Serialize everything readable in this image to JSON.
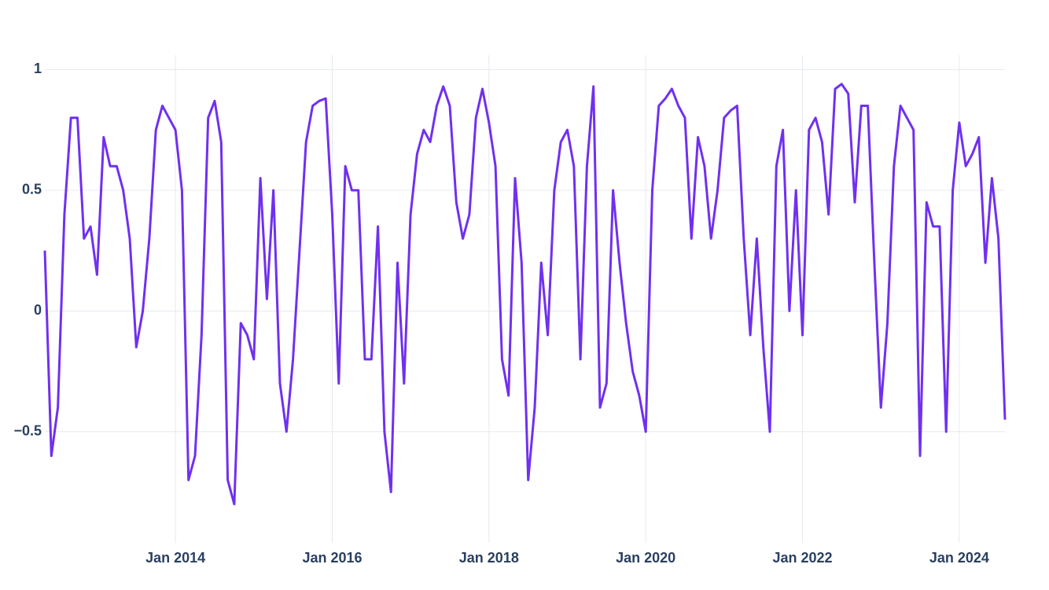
{
  "chart_data": {
    "type": "line",
    "x": [
      "2012-05",
      "2012-06",
      "2012-07",
      "2012-08",
      "2012-09",
      "2012-10",
      "2012-11",
      "2012-12",
      "2013-01",
      "2013-02",
      "2013-03",
      "2013-04",
      "2013-05",
      "2013-06",
      "2013-07",
      "2013-08",
      "2013-09",
      "2013-10",
      "2013-11",
      "2013-12",
      "2014-01",
      "2014-02",
      "2014-03",
      "2014-04",
      "2014-05",
      "2014-06",
      "2014-07",
      "2014-08",
      "2014-09",
      "2014-10",
      "2014-11",
      "2014-12",
      "2015-01",
      "2015-02",
      "2015-03",
      "2015-04",
      "2015-05",
      "2015-06",
      "2015-07",
      "2015-08",
      "2015-09",
      "2015-10",
      "2015-11",
      "2015-12",
      "2016-01",
      "2016-02",
      "2016-03",
      "2016-04",
      "2016-05",
      "2016-06",
      "2016-07",
      "2016-08",
      "2016-09",
      "2016-10",
      "2016-11",
      "2016-12",
      "2017-01",
      "2017-02",
      "2017-03",
      "2017-04",
      "2017-05",
      "2017-06",
      "2017-07",
      "2017-08",
      "2017-09",
      "2017-10",
      "2017-11",
      "2017-12",
      "2018-01",
      "2018-02",
      "2018-03",
      "2018-04",
      "2018-05",
      "2018-06",
      "2018-07",
      "2018-08",
      "2018-09",
      "2018-10",
      "2018-11",
      "2018-12",
      "2019-01",
      "2019-02",
      "2019-03",
      "2019-04",
      "2019-05",
      "2019-06",
      "2019-07",
      "2019-08",
      "2019-09",
      "2019-10",
      "2019-11",
      "2019-12",
      "2020-01",
      "2020-02",
      "2020-03",
      "2020-04",
      "2020-05",
      "2020-06",
      "2020-07",
      "2020-08",
      "2020-09",
      "2020-10",
      "2020-11",
      "2020-12",
      "2021-01",
      "2021-02",
      "2021-03",
      "2021-04",
      "2021-05",
      "2021-06",
      "2021-07",
      "2021-08",
      "2021-09",
      "2021-10",
      "2021-11",
      "2021-12",
      "2022-01",
      "2022-02",
      "2022-03",
      "2022-04",
      "2022-05",
      "2022-06",
      "2022-07",
      "2022-08",
      "2022-09",
      "2022-10",
      "2022-11",
      "2022-12",
      "2023-01",
      "2023-02",
      "2023-03",
      "2023-04",
      "2023-05",
      "2023-06",
      "2023-07",
      "2023-08",
      "2023-09",
      "2023-10",
      "2023-11",
      "2023-12",
      "2024-01",
      "2024-02",
      "2024-03",
      "2024-04",
      "2024-05",
      "2024-06",
      "2024-07",
      "2024-08"
    ],
    "series": [
      {
        "color": "#7030f0",
        "values": [
          0.25,
          -0.6,
          -0.4,
          0.4,
          0.8,
          0.8,
          0.3,
          0.35,
          0.15,
          0.72,
          0.6,
          0.6,
          0.5,
          0.3,
          -0.15,
          0.0,
          0.3,
          0.75,
          0.85,
          0.8,
          0.75,
          0.5,
          -0.7,
          -0.6,
          -0.1,
          0.8,
          0.87,
          0.7,
          -0.7,
          -0.8,
          -0.05,
          -0.1,
          -0.2,
          0.55,
          0.05,
          0.5,
          -0.3,
          -0.5,
          -0.2,
          0.25,
          0.7,
          0.85,
          0.87,
          0.88,
          0.4,
          -0.3,
          0.6,
          0.5,
          0.5,
          -0.2,
          -0.2,
          0.35,
          -0.5,
          -0.75,
          0.2,
          -0.3,
          0.4,
          0.65,
          0.75,
          0.7,
          0.85,
          0.93,
          0.85,
          0.45,
          0.3,
          0.4,
          0.8,
          0.92,
          0.78,
          0.6,
          -0.2,
          -0.35,
          0.55,
          0.2,
          -0.7,
          -0.4,
          0.2,
          -0.1,
          0.5,
          0.7,
          0.75,
          0.6,
          -0.2,
          0.6,
          0.93,
          -0.4,
          -0.3,
          0.5,
          0.2,
          -0.05,
          -0.25,
          -0.35,
          -0.5,
          0.5,
          0.85,
          0.88,
          0.92,
          0.85,
          0.8,
          0.3,
          0.72,
          0.6,
          0.3,
          0.5,
          0.8,
          0.83,
          0.85,
          0.3,
          -0.1,
          0.3,
          -0.15,
          -0.5,
          0.6,
          0.75,
          0.0,
          0.5,
          -0.1,
          0.75,
          0.8,
          0.7,
          0.4,
          0.92,
          0.94,
          0.9,
          0.45,
          0.85,
          0.85,
          0.2,
          -0.4,
          -0.05,
          0.6,
          0.85,
          0.8,
          0.75,
          -0.6,
          0.45,
          0.35,
          0.35,
          -0.5,
          0.5,
          0.78,
          0.6,
          0.65,
          0.72,
          0.2,
          0.55,
          0.3,
          -0.45
        ]
      }
    ],
    "xlim": [
      "2012-05",
      "2024-08"
    ],
    "xticks": [
      {
        "value": "2014-01",
        "label": "Jan 2014"
      },
      {
        "value": "2016-01",
        "label": "Jan 2016"
      },
      {
        "value": "2018-01",
        "label": "Jan 2018"
      },
      {
        "value": "2020-01",
        "label": "Jan 2020"
      },
      {
        "value": "2022-01",
        "label": "Jan 2022"
      },
      {
        "value": "2024-01",
        "label": "Jan 2024"
      }
    ],
    "ylim": [
      -0.96,
      1.06
    ],
    "yticks": [
      {
        "value": -0.5,
        "label": "−0.5"
      },
      0,
      0.5,
      1
    ],
    "grid": true
  }
}
